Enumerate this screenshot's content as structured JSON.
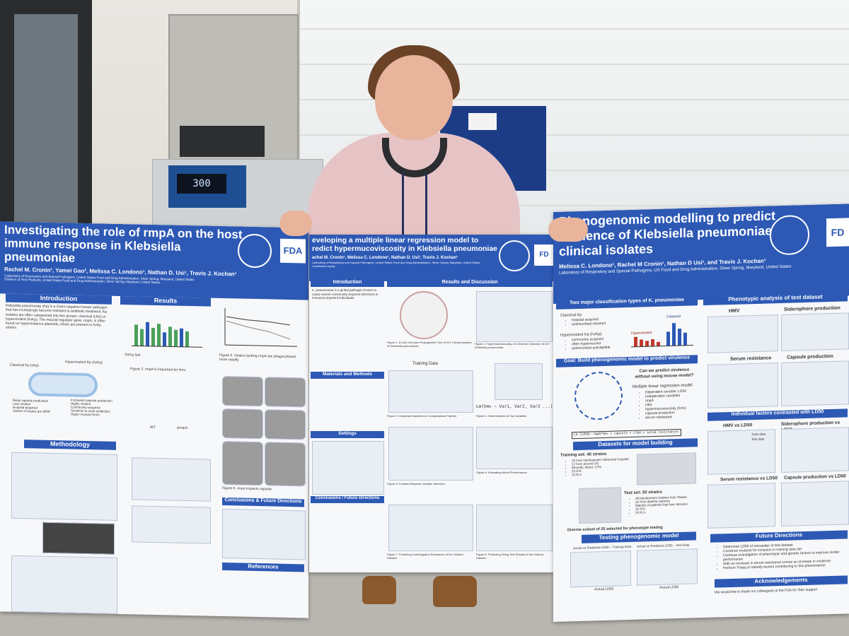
{
  "scene": {
    "freezer_display": "300"
  },
  "poster_left": {
    "title_line1": "Investigating the role of rmpA on the host",
    "title_line2": "immune response in Klebsiella",
    "title_line3": "pneumoniae",
    "authors": "Rachel M. Cronin¹, Yamei Gao², Melissa C. Londono¹, Nathan D. Usi¹, Travis J. Kochan¹",
    "affiliation1": "¹Laboratory of Respiratory and Special Pathogens, United States Food and Drug Administration, Silver Spring, Maryland, United States",
    "affiliation2": "²Division of Viral Products, United States Food and Drug Administration, Silver Spring, Maryland, United States",
    "logo": "FDA",
    "sections": {
      "introduction": "Introduction",
      "results": "Results",
      "methodology": "Methodology",
      "conclusions": "Conclusions & Future Directions",
      "references": "References"
    },
    "intro_text": "Klebsiella pneumoniae (Kp) is a Gram-negative human pathogen that has increasingly become resistant to antibiotic treatment. Kp isolates are often categorized into two groups: classical (cKp) or hypervirulent (hvKp). The mucoid regulator gene, rmpA, is often found on hypervirulence plasmids, which are present in hvKp strains.",
    "classical_label": "Classical Kp (cKp)",
    "hypervirulent_label": "Hypervirulent Kp (hvKp)",
    "compare_left": [
      "Basal capsule production",
      "Less virulent",
      "Hospital-acquired",
      "Subset of strains are MDR"
    ],
    "compare_right": [
      "Increased capsule production",
      "Highly virulent",
      "Community-acquired",
      "Sensitive to most antibiotics",
      "Hyper-mucoid (hmv)"
    ],
    "string_test": "String test",
    "fig5_caption": "Figure 5. Strains lacking rmpA are phagocytosed more readily.",
    "fig2_caption": "Figure 2. rmpA is important for hmv.",
    "fig6_caption": "Figure 6. rmpA impacts capsule.",
    "wt_label": "WT",
    "mut_label": "ΔrmpA"
  },
  "poster_middle": {
    "title_line1": "eveloping a multiple linear regression model to",
    "title_line2": "redict hypermucoviscosity in Klebsiella pneumoniae",
    "authors": "achel M. Cronin¹, Melissa C. Londono¹, Nathan D. Usi¹, Travis J. Kochan¹",
    "affiliation": "Laboratory of Respiratory and Special Pathogens, United States Food and Drug Administration, Silver Spring, Maryland, United States",
    "equity": "Contributed equity",
    "logo": "FD",
    "sections": {
      "introduction": "Introduction",
      "results": "Results and Discussion",
      "materials": "Materials and Methods",
      "settings": "Settings",
      "conclusions": "Conclusions / Future Directions"
    },
    "intro_text": "K. pneumoniae is a global pathogen known to cause severe community-acquired infections in immunocompetent individuals.",
    "training_data": "Training Data",
    "formula": "Lm(hmv ~ Var1, Var2, Var3 ...)",
    "fig1_caption": "Figure 1. A Core Genome Phylogenetic Tree of 247 Clinical Isolates of Klebsiella pneumoniae",
    "fig2_caption": "Figure 2. Hypermucoviscosity of a Diverse Collection of 247 Klebsiella pneumoniae.",
    "fig3_caption": "Figure 3. Graphical Depiction of Computational Pipeline",
    "fig4_caption": "Figure 4. Determination of Top Variables",
    "fig5_caption": "Figure 5. Forward Stepwise Variable Selection.",
    "fig6_caption": "Figure 6. Estimating Model Performance.",
    "fig7_caption": "Figure 7. Predicting Centrifugation Resistance of the Holdout Dataset.",
    "fig8_caption": "Figure 8. Predicting String Test Results of the Holdout Dataset."
  },
  "poster_right": {
    "title_line1": "Phenogenomic modelling to predict",
    "title_line2": "virulence of Klebsiella pneumoniae",
    "title_line3": "clinical isolates",
    "authors": "Melissa C. Londono¹, Rachel M Cronin¹, Nathan D Usi¹,  and Travis J. Kochan¹",
    "affiliation": "Laboratory of Respiratory and Special Pathogens, US Food and Drug Administration, Silver Spring, Maryland, United States",
    "logo": "FD",
    "sections": {
      "classification": "Two major classification types of K. pneumoniae",
      "phenotypic": "Phenotypic analysis of test dataset",
      "goal": "Goal: Build phenogenomic model to predict virulence",
      "individual": "Individual factors contrasted with LD50",
      "datasets": "Datasets for model building",
      "testing": "Testing phenogenomic model",
      "future": "Future Directions",
      "ack": "Acknowledgements"
    },
    "classical_title": "Classical Kp",
    "classical_items": [
      "hospital acquired",
      "antimicrobial resistant"
    ],
    "hv_title": "Hypervirulent Kp (hvKp)",
    "hv_items": [
      "community acquired",
      "often hypermucoid",
      "antimicrobial susceptible"
    ],
    "hypervirulent_label": "Hypervirulent",
    "classical_bar_label": "Classical",
    "hmv_title": "HMV",
    "siderophore_title": "Siderophore production",
    "serum_title": "Serum resistance",
    "capsule_title": "Capsule production",
    "question": "Can we predict virulence without using mouse model?",
    "mlr_title": "Multiple linear regression model",
    "mlr_items": [
      "Dependent variable: LD50",
      "Independent variables",
      "rmpA",
      "clbA",
      "hypermucoviscosity (hmv)",
      "capsule production",
      "serum resistance"
    ],
    "model_formula": "Lm (LD50~ rmpA*hmv + capsule + clbA + serum resistance)",
    "training_title": "Training set: 40 strains",
    "training_items": [
      "25 from Northwestern Memorial Hospital",
      "12 from around US",
      "Wounds, blood, UTIs",
      "25 STs",
      "15 KLs"
    ],
    "test_title": "Test set: 50 strains",
    "test_items": [
      "All bloodstream isolates from Taiwan",
      "32 from diabetic patients",
      "Majority of patients had liver abscess",
      "35 STs",
      "26 KLs"
    ],
    "subset_note": "Diverse subset of 25 selected for phenotype testing",
    "hmv_vs_ld50": "HMV vs LD50",
    "siderophore_vs_ld50": "Siderophore production vs LD50",
    "serum_vs_ld50": "Serum resistance vs LD50",
    "capsule_vs_ld50": "Capsule production vs LD50",
    "legend_train": "Train data",
    "legend_test": "Test data",
    "plot_train_title": "Actual vs Predicted LD50 – Training Data",
    "plot_test_title": "Actual vs Predicted LD50 – Test Data",
    "actual_ld50": "Actual LD50",
    "future_items": [
      "Determine LD50 of remainder of test dataset",
      "Construct mutants for inclusion in training data set",
      "Continue investigation of phenotypic and genetic factors to improve model performance",
      "With an increase in serum resistance comes an increase in virulence",
      "Perform Tnseq to identify factors contributing to this phenomenon"
    ],
    "ack_text": "We would like to thank our colleagues at the FDA for their support"
  }
}
